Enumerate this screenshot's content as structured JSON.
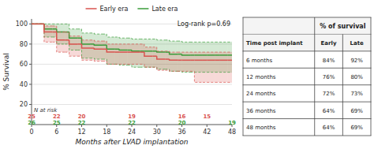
{
  "chart_data": {
    "type": "step",
    "x_label": "Months after LVAD implantation",
    "y_label": "% Survival",
    "xlim": [
      0,
      48
    ],
    "ylim": [
      0,
      105
    ],
    "xticks": [
      0,
      6,
      12,
      18,
      24,
      30,
      36,
      42,
      48
    ],
    "yticks": [
      20,
      40,
      60,
      80,
      100
    ],
    "grid": true,
    "legend": "top",
    "annotations": [
      {
        "text": "Log-rank p=0.69"
      }
    ],
    "at_risk_label": "N at risk",
    "at_risk_x": [
      0,
      6,
      12,
      24,
      36,
      42,
      48
    ],
    "series": [
      {
        "name": "Early era",
        "color": "#d9534f",
        "x": [
          0,
          2,
          3,
          5,
          6,
          8,
          9,
          11,
          12,
          14,
          15,
          17,
          18,
          20,
          21,
          23,
          24,
          26,
          27,
          29,
          30,
          32,
          33,
          35,
          36,
          38,
          39,
          41,
          42,
          44,
          45,
          47,
          48
        ],
        "values": [
          100,
          100,
          92,
          92,
          84,
          84,
          80,
          80,
          76,
          76,
          75,
          75,
          72,
          72,
          72,
          72,
          72,
          72,
          68,
          68,
          65,
          65,
          64,
          64,
          64,
          64,
          64,
          64,
          64,
          64,
          64,
          64,
          64
        ],
        "ci_upper": [
          100,
          100,
          98,
          98,
          92,
          92,
          88,
          88,
          84,
          84,
          83,
          83,
          80,
          80,
          80,
          80,
          80,
          80,
          77,
          77,
          73,
          73,
          72,
          72,
          72,
          72,
          72,
          72,
          72,
          72,
          72,
          72,
          72
        ],
        "ci_lower": [
          100,
          100,
          82,
          82,
          72,
          72,
          68,
          68,
          64,
          64,
          63,
          63,
          60,
          60,
          60,
          60,
          60,
          60,
          57,
          57,
          54,
          54,
          53,
          53,
          53,
          53,
          42,
          42,
          42,
          42,
          42,
          42,
          42
        ],
        "at_risk": [
          25,
          22,
          20,
          19,
          16,
          15,
          null
        ]
      },
      {
        "name": "Late era",
        "color": "#3a9c3a",
        "x": [
          0,
          2,
          3,
          5,
          6,
          8,
          9,
          11,
          12,
          14,
          15,
          17,
          18,
          20,
          21,
          23,
          24,
          26,
          27,
          29,
          30,
          32,
          33,
          35,
          36,
          38,
          39,
          41,
          42,
          44,
          45,
          47,
          48
        ],
        "values": [
          100,
          100,
          95,
          95,
          92,
          92,
          86,
          86,
          80,
          80,
          79,
          79,
          75,
          75,
          74,
          74,
          73,
          73,
          73,
          73,
          72,
          72,
          70,
          70,
          69,
          69,
          69,
          69,
          69,
          69,
          69,
          69,
          69
        ],
        "ci_upper": [
          100,
          100,
          100,
          100,
          100,
          100,
          95,
          95,
          91,
          91,
          90,
          90,
          87,
          87,
          86,
          86,
          85,
          85,
          85,
          85,
          84,
          84,
          83,
          83,
          82,
          82,
          82,
          82,
          82,
          82,
          82,
          82,
          82
        ],
        "ci_lower": [
          100,
          100,
          87,
          87,
          80,
          80,
          74,
          74,
          66,
          66,
          65,
          65,
          60,
          60,
          59,
          59,
          57,
          57,
          57,
          57,
          55,
          55,
          53,
          53,
          52,
          52,
          52,
          52,
          52,
          52,
          52,
          52,
          52
        ],
        "at_risk": [
          26,
          25,
          22,
          22,
          20,
          null,
          19
        ]
      }
    ],
    "table": {
      "title": "% of survival",
      "header": [
        "Time post implant",
        "Early",
        "Late"
      ],
      "rows": [
        [
          "6 months",
          "84%",
          "92%"
        ],
        [
          "12 months",
          "76%",
          "80%"
        ],
        [
          "24 months",
          "72%",
          "73%"
        ],
        [
          "36 months",
          "64%",
          "69%"
        ],
        [
          "48 months",
          "64%",
          "69%"
        ]
      ]
    }
  }
}
